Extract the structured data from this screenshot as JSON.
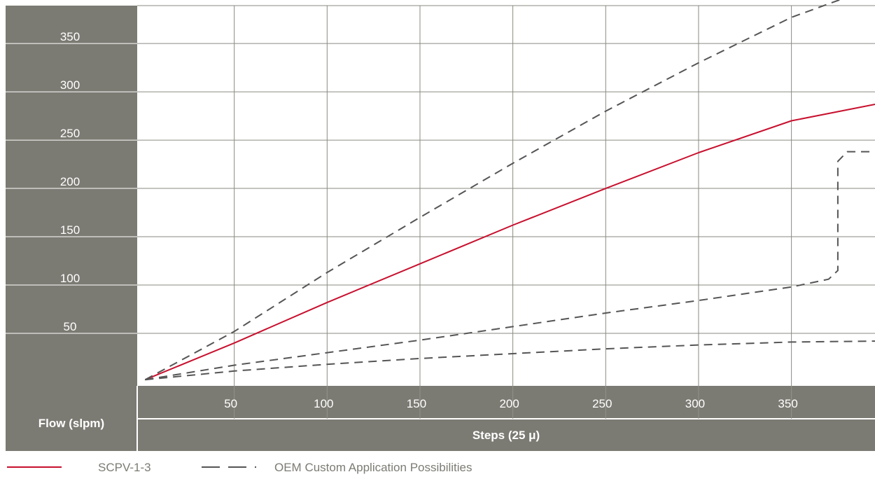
{
  "chart_data": {
    "type": "line",
    "xlabel": "Flow (slpm)",
    "ylabel": "",
    "x_axis_title": "Steps (25 μ)",
    "xlim": [
      0,
      395
    ],
    "ylim": [
      0,
      395
    ],
    "x_ticks": [
      50,
      100,
      150,
      200,
      250,
      300,
      350
    ],
    "y_ticks": [
      50,
      100,
      150,
      200,
      250,
      300,
      350
    ],
    "x_tick_labels": [
      "50",
      "100",
      "150",
      "200",
      "250",
      "300",
      "350"
    ],
    "y_tick_labels": [
      "50",
      "100",
      "150",
      "200",
      "250",
      "300",
      "350"
    ],
    "grid": true,
    "legend_position": "bottom",
    "series": [
      {
        "name": "SCPV-1-3",
        "style": "solid",
        "color": "#c8102e",
        "x": [
          2,
          50,
          100,
          150,
          200,
          250,
          300,
          350,
          395
        ],
        "y": [
          2,
          40,
          82,
          122,
          162,
          200,
          237,
          270,
          287
        ]
      },
      {
        "name": "OEM Custom Application Possibilities",
        "style": "dashed",
        "color": "#555555",
        "x": [
          2,
          50,
          100,
          150,
          200,
          250,
          300,
          350,
          380
        ],
        "y": [
          2,
          52,
          113,
          170,
          226,
          280,
          330,
          377,
          398
        ]
      },
      {
        "name": "",
        "style": "dashed",
        "color": "#555555",
        "x": [
          2,
          50,
          100,
          150,
          200,
          250,
          300,
          350,
          370,
          375,
          375,
          380,
          395
        ],
        "y": [
          2,
          17,
          30,
          43,
          57,
          71,
          84,
          98,
          106,
          115,
          228,
          238,
          238
        ]
      },
      {
        "name": "",
        "style": "dashed",
        "color": "#555555",
        "x": [
          2,
          50,
          100,
          150,
          200,
          250,
          300,
          350,
          395
        ],
        "y": [
          2,
          11,
          18,
          24,
          29,
          34,
          38,
          41,
          42
        ]
      }
    ]
  },
  "legend": {
    "solid_label": "SCPV-1-3",
    "dashed_label": "OEM Custom Application Possibilities"
  },
  "colors": {
    "panel": "#7c7b73",
    "grid": "#8a8a82",
    "solid": "#c8102e",
    "dashed": "#555555",
    "legend_text": "#7c7b73"
  }
}
